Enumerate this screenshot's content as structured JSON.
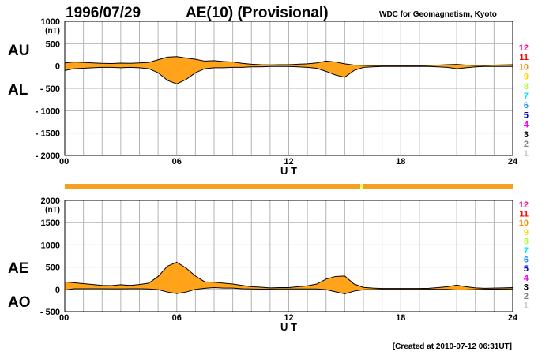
{
  "header": {
    "date": "1996/07/29",
    "title": "AE(10) (Provisional)",
    "source": "WDC for Geomagnetism, Kyoto"
  },
  "footer": {
    "created": "[Created at 2010-07-12 06:31UT]"
  },
  "colors": {
    "fill": "#ffa31a",
    "grid": "#b4b4b4",
    "qualityBar": "#f5a01e",
    "qualityMark": "#ffff66"
  },
  "chart_data": [
    {
      "type": "area",
      "upper_label": "AU",
      "lower_label": "AL",
      "ylabel": "(nT)",
      "xlabel": "U T",
      "xlim": [
        0,
        24
      ],
      "ylim": [
        -2000,
        1000
      ],
      "y_ticks": [
        {
          "v": 1000,
          "label": "1000"
        },
        {
          "v": 500,
          "label": "500"
        },
        {
          "v": 0,
          "label": "0"
        },
        {
          "v": -500,
          "label": "- 500"
        },
        {
          "v": -1000,
          "label": "- 1000"
        },
        {
          "v": -1500,
          "label": "- 1500"
        },
        {
          "v": -2000,
          "label": "- 2000"
        }
      ],
      "x_ticks": [
        {
          "v": 0,
          "label": "00"
        },
        {
          "v": 6,
          "label": "06"
        },
        {
          "v": 12,
          "label": "12"
        },
        {
          "v": 18,
          "label": "18"
        },
        {
          "v": 24,
          "label": "24"
        }
      ],
      "levels": [
        {
          "label": "12",
          "color": "#ff1493"
        },
        {
          "label": "11",
          "color": "#ff0000"
        },
        {
          "label": "10",
          "color": "#ff8c00"
        },
        {
          "label": "9",
          "color": "#ffd700"
        },
        {
          "label": "8",
          "color": "#adff2f"
        },
        {
          "label": "7",
          "color": "#00e5ee"
        },
        {
          "label": "6",
          "color": "#1e90ff"
        },
        {
          "label": "5",
          "color": "#0000cd"
        },
        {
          "label": "4",
          "color": "#ee00ee"
        },
        {
          "label": "3",
          "color": "#000000"
        },
        {
          "label": "2",
          "color": "#808080"
        },
        {
          "label": "1",
          "color": "#c8c8c8"
        }
      ],
      "series_upper": {
        "x": [
          0,
          0.5,
          1,
          1.5,
          2,
          2.5,
          3,
          3.5,
          4,
          4.5,
          5,
          5.5,
          6,
          6.5,
          7,
          7.5,
          8,
          8.5,
          9,
          9.5,
          10,
          10.5,
          11,
          11.5,
          12,
          12.5,
          13,
          13.5,
          14,
          14.5,
          15,
          15.5,
          16,
          16.5,
          17,
          17.5,
          18,
          18.5,
          19,
          19.5,
          20,
          20.5,
          21,
          21.5,
          22,
          22.5,
          23,
          23.5,
          24
        ],
        "values": [
          70,
          90,
          80,
          70,
          60,
          55,
          65,
          60,
          70,
          80,
          140,
          200,
          210,
          180,
          150,
          110,
          120,
          100,
          90,
          60,
          40,
          30,
          25,
          30,
          30,
          40,
          50,
          70,
          110,
          90,
          50,
          20,
          15,
          10,
          10,
          10,
          10,
          10,
          10,
          15,
          20,
          30,
          35,
          20,
          15,
          15,
          20,
          25,
          30
        ]
      },
      "series_lower": {
        "x": [
          0,
          0.5,
          1,
          1.5,
          2,
          2.5,
          3,
          3.5,
          4,
          4.5,
          5,
          5.5,
          6,
          6.5,
          7,
          7.5,
          8,
          8.5,
          9,
          9.5,
          10,
          10.5,
          11,
          11.5,
          12,
          12.5,
          13,
          13.5,
          14,
          14.5,
          15,
          15.5,
          16,
          16.5,
          17,
          17.5,
          18,
          18.5,
          19,
          19.5,
          20,
          20.5,
          21,
          21.5,
          22,
          22.5,
          23,
          23.5,
          24
        ],
        "values": [
          -100,
          -60,
          -50,
          -40,
          -30,
          -30,
          -40,
          -30,
          -40,
          -60,
          -150,
          -320,
          -400,
          -300,
          -150,
          -60,
          -40,
          -40,
          -30,
          -30,
          -20,
          -20,
          -10,
          -10,
          -10,
          -20,
          -30,
          -50,
          -120,
          -200,
          -250,
          -100,
          -30,
          -20,
          -10,
          -10,
          -10,
          -10,
          -10,
          -10,
          -20,
          -30,
          -60,
          -40,
          -20,
          -10,
          -10,
          -10,
          -10
        ]
      }
    },
    {
      "type": "area",
      "upper_label": "AE",
      "lower_label": "AO",
      "ylabel": "(nT)",
      "xlabel": "U T",
      "xlim": [
        0,
        24
      ],
      "ylim": [
        -500,
        2000
      ],
      "y_ticks": [
        {
          "v": 2000,
          "label": "2000"
        },
        {
          "v": 1500,
          "label": "1500"
        },
        {
          "v": 1000,
          "label": "1000"
        },
        {
          "v": 500,
          "label": "500"
        },
        {
          "v": 0,
          "label": "0"
        },
        {
          "v": -500,
          "label": "- 500"
        }
      ],
      "x_ticks": [
        {
          "v": 0,
          "label": "00"
        },
        {
          "v": 6,
          "label": "06"
        },
        {
          "v": 12,
          "label": "12"
        },
        {
          "v": 18,
          "label": "18"
        },
        {
          "v": 24,
          "label": "24"
        }
      ],
      "levels": [
        {
          "label": "12",
          "color": "#ff1493"
        },
        {
          "label": "11",
          "color": "#ff0000"
        },
        {
          "label": "10",
          "color": "#ff8c00"
        },
        {
          "label": "9",
          "color": "#ffd700"
        },
        {
          "label": "8",
          "color": "#adff2f"
        },
        {
          "label": "7",
          "color": "#00e5ee"
        },
        {
          "label": "6",
          "color": "#1e90ff"
        },
        {
          "label": "5",
          "color": "#0000cd"
        },
        {
          "label": "4",
          "color": "#ee00ee"
        },
        {
          "label": "3",
          "color": "#000000"
        },
        {
          "label": "2",
          "color": "#808080"
        },
        {
          "label": "1",
          "color": "#c8c8c8"
        }
      ],
      "series_upper": {
        "x": [
          0,
          0.5,
          1,
          1.5,
          2,
          2.5,
          3,
          3.5,
          4,
          4.5,
          5,
          5.5,
          6,
          6.5,
          7,
          7.5,
          8,
          8.5,
          9,
          9.5,
          10,
          10.5,
          11,
          11.5,
          12,
          12.5,
          13,
          13.5,
          14,
          14.5,
          15,
          15.5,
          16,
          16.5,
          17,
          17.5,
          18,
          18.5,
          19,
          19.5,
          20,
          20.5,
          21,
          21.5,
          22,
          22.5,
          23,
          23.5,
          24
        ],
        "values": [
          170,
          150,
          130,
          110,
          90,
          85,
          105,
          90,
          110,
          140,
          290,
          520,
          610,
          480,
          300,
          170,
          160,
          140,
          120,
          90,
          60,
          50,
          35,
          40,
          40,
          60,
          80,
          120,
          230,
          290,
          300,
          120,
          45,
          30,
          20,
          20,
          20,
          20,
          20,
          25,
          40,
          60,
          95,
          60,
          35,
          25,
          30,
          35,
          40
        ]
      },
      "series_lower": {
        "x": [
          0,
          0.5,
          1,
          1.5,
          2,
          2.5,
          3,
          3.5,
          4,
          4.5,
          5,
          5.5,
          6,
          6.5,
          7,
          7.5,
          8,
          8.5,
          9,
          9.5,
          10,
          10.5,
          11,
          11.5,
          12,
          12.5,
          13,
          13.5,
          14,
          14.5,
          15,
          15.5,
          16,
          16.5,
          17,
          17.5,
          18,
          18.5,
          19,
          19.5,
          20,
          20.5,
          21,
          21.5,
          22,
          22.5,
          23,
          23.5,
          24
        ],
        "values": [
          -15,
          15,
          15,
          15,
          15,
          12,
          12,
          15,
          15,
          10,
          -5,
          -60,
          -95,
          -60,
          0,
          25,
          40,
          30,
          30,
          15,
          10,
          5,
          8,
          10,
          10,
          10,
          10,
          10,
          -5,
          -55,
          -100,
          -40,
          -8,
          -5,
          0,
          0,
          0,
          0,
          0,
          3,
          0,
          0,
          -12,
          -10,
          -3,
          3,
          5,
          8,
          10
        ]
      }
    }
  ]
}
